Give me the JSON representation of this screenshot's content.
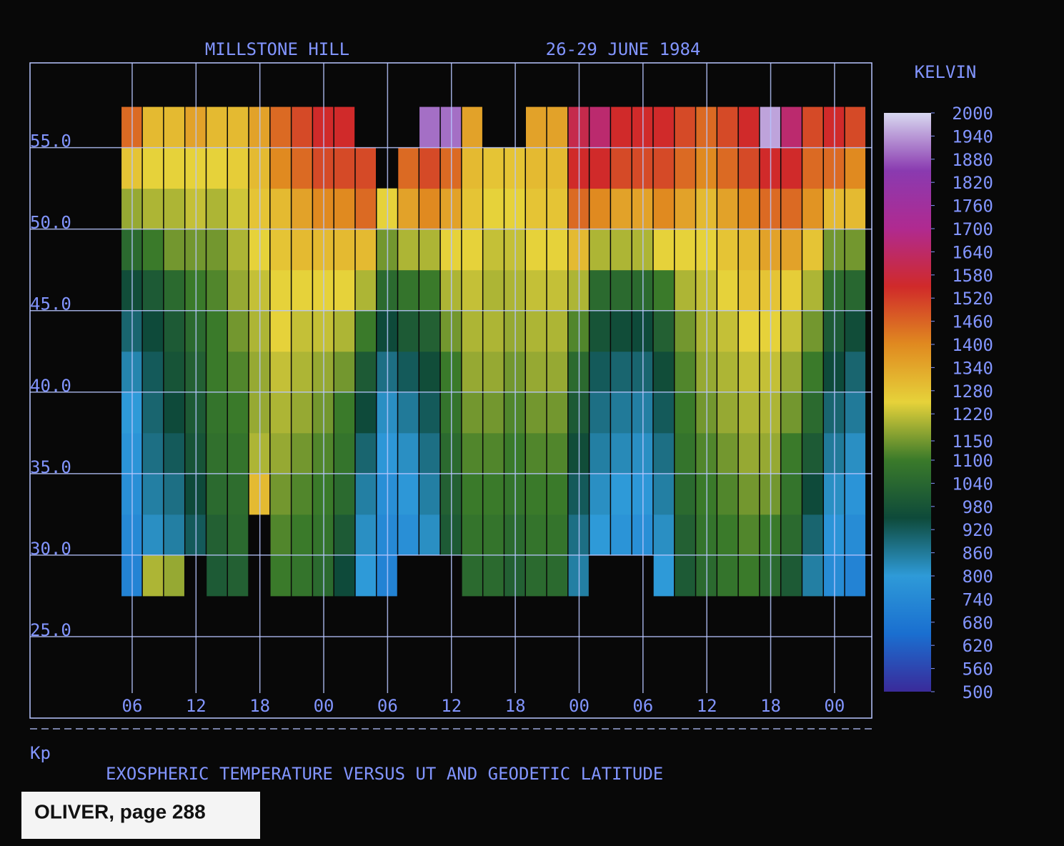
{
  "chart_data": {
    "type": "heatmap",
    "title": "MILLSTONE HILL",
    "subtitle": "26-29 JUNE 1984",
    "caption": "EXOSPHERIC TEMPERATURE VERSUS UT AND GEODETIC LATITUDE",
    "kp_label": "Kp",
    "stamp": "OLIVER, page 288",
    "colorbar_title": "KELVIN",
    "xlim": [
      -3.6,
      75.5
    ],
    "ylim": [
      20,
      60.2
    ],
    "xticks": [
      {
        "value": 6,
        "label": "06"
      },
      {
        "value": 12,
        "label": "12"
      },
      {
        "value": 18,
        "label": "18"
      },
      {
        "value": 24,
        "label": "00"
      },
      {
        "value": 30,
        "label": "06"
      },
      {
        "value": 36,
        "label": "12"
      },
      {
        "value": 42,
        "label": "18"
      },
      {
        "value": 48,
        "label": "00"
      },
      {
        "value": 54,
        "label": "06"
      },
      {
        "value": 60,
        "label": "12"
      },
      {
        "value": 66,
        "label": "18"
      },
      {
        "value": 72,
        "label": "00"
      }
    ],
    "yticks": [
      {
        "value": 55,
        "label": "55.0"
      },
      {
        "value": 50,
        "label": "50.0"
      },
      {
        "value": 45,
        "label": "45.0"
      },
      {
        "value": 40,
        "label": "40.0"
      },
      {
        "value": 35,
        "label": "35.0"
      },
      {
        "value": 30,
        "label": "30.0"
      },
      {
        "value": 25,
        "label": "25.0"
      }
    ],
    "grid": true,
    "clim": [
      500,
      2000
    ],
    "colors": [
      "#3a2a9a",
      "#1a6fd0",
      "#2e9ad8",
      "#0e4a3a",
      "#3a7a2a",
      "#e6d23a",
      "#e08a20",
      "#d02a2a",
      "#b02a90",
      "#8a3ab0",
      "#d8d8f0"
    ],
    "cticks": [
      2000,
      1940,
      1880,
      1820,
      1760,
      1700,
      1640,
      1580,
      1520,
      1460,
      1400,
      1340,
      1280,
      1220,
      1150,
      1100,
      1040,
      980,
      920,
      860,
      800,
      740,
      680,
      620,
      560,
      500
    ],
    "xbins": [
      5,
      7,
      9,
      11,
      13,
      15,
      17,
      19,
      21,
      23,
      25,
      27,
      29,
      31,
      33,
      35,
      37,
      39,
      41,
      43,
      45,
      47,
      49,
      51,
      53,
      55,
      57,
      59,
      61,
      63,
      65,
      67,
      69,
      71,
      73,
      75
    ],
    "ybins": [
      27.5,
      30,
      32.5,
      35,
      37.5,
      40,
      42.5,
      45,
      47.5,
      50,
      52.5,
      55,
      57.5
    ],
    "z": [
      [
        720,
        740,
        760,
        780,
        800,
        840,
        900,
        960,
        1050,
        1180,
        1280,
        1450
      ],
      [
        1200,
        820,
        850,
        880,
        900,
        920,
        950,
        1000,
        1100,
        1200,
        1250,
        1300
      ],
      [
        1180,
        850,
        880,
        920,
        950,
        980,
        1000,
        1050,
        1150,
        1200,
        1250,
        1300
      ],
      [
        null,
        920,
        950,
        980,
        1000,
        1020,
        1050,
        1100,
        1150,
        1220,
        1250,
        1350
      ],
      [
        1000,
        1020,
        1050,
        1070,
        1080,
        1100,
        1100,
        1120,
        1150,
        1200,
        1250,
        1300
      ],
      [
        1020,
        1050,
        1060,
        1080,
        1100,
        1120,
        1150,
        1180,
        1200,
        1230,
        1260,
        1300
      ],
      [
        null,
        null,
        1300,
        1200,
        1180,
        1180,
        1200,
        1220,
        1250,
        1280,
        1300,
        1350
      ],
      [
        1100,
        1120,
        1150,
        1180,
        1200,
        1220,
        1250,
        1250,
        1280,
        1300,
        1400,
        1450
      ],
      [
        1080,
        1100,
        1120,
        1150,
        1180,
        1200,
        1220,
        1250,
        1300,
        1350,
        1450,
        1500
      ],
      [
        1050,
        1080,
        1100,
        1120,
        1150,
        1180,
        1220,
        1250,
        1300,
        1400,
        1500,
        1550
      ],
      [
        950,
        1000,
        1050,
        1080,
        1100,
        1150,
        1200,
        1250,
        1300,
        1400,
        1500,
        1550
      ],
      [
        800,
        820,
        850,
        900,
        950,
        1000,
        1100,
        1200,
        1300,
        1450,
        1500,
        null
      ],
      [
        720,
        740,
        760,
        790,
        820,
        880,
        950,
        1050,
        1150,
        1250,
        null,
        null
      ],
      [
        null,
        760,
        790,
        820,
        860,
        920,
        1000,
        1080,
        1200,
        1350,
        1450,
        null
      ],
      [
        null,
        820,
        850,
        880,
        920,
        960,
        1020,
        1100,
        1200,
        1400,
        1500,
        1900
      ],
      [
        null,
        1000,
        1020,
        1050,
        1080,
        1100,
        1150,
        1200,
        1250,
        1350,
        1450,
        1900
      ],
      [
        1050,
        1080,
        1100,
        1120,
        1150,
        1180,
        1200,
        1220,
        1250,
        1280,
        1300,
        1350
      ],
      [
        1050,
        1080,
        1100,
        1120,
        1150,
        1180,
        1200,
        1200,
        1220,
        1250,
        1280,
        null
      ],
      [
        1020,
        1050,
        1080,
        1100,
        1120,
        1150,
        1180,
        1200,
        1220,
        1250,
        1280,
        null
      ],
      [
        1050,
        1080,
        1100,
        1120,
        1150,
        1180,
        1200,
        1220,
        1250,
        1280,
        1300,
        1350
      ],
      [
        1050,
        1080,
        1100,
        1120,
        1150,
        1180,
        1200,
        1220,
        1250,
        1280,
        1300,
        1350
      ],
      [
        850,
        880,
        920,
        960,
        1000,
        1050,
        1120,
        1200,
        1300,
        1450,
        1550,
        1600
      ],
      [
        null,
        800,
        820,
        850,
        880,
        920,
        980,
        1050,
        1200,
        1400,
        1550,
        1650
      ],
      [
        null,
        780,
        800,
        830,
        860,
        900,
        960,
        1050,
        1200,
        1350,
        1500,
        1550
      ],
      [
        null,
        760,
        790,
        820,
        850,
        900,
        950,
        1050,
        1200,
        1350,
        1500,
        1550
      ],
      [
        800,
        820,
        850,
        880,
        920,
        960,
        1020,
        1100,
        1250,
        1400,
        1500,
        1550
      ],
      [
        1000,
        1020,
        1050,
        1080,
        1100,
        1120,
        1150,
        1200,
        1250,
        1350,
        1450,
        1500
      ],
      [
        1050,
        1080,
        1100,
        1120,
        1150,
        1180,
        1200,
        1220,
        1250,
        1300,
        1400,
        1450
      ],
      [
        1080,
        1100,
        1120,
        1150,
        1180,
        1200,
        1220,
        1250,
        1280,
        1350,
        1450,
        1500
      ],
      [
        1100,
        1120,
        1150,
        1180,
        1200,
        1220,
        1250,
        1280,
        1300,
        1400,
        1500,
        1550
      ],
      [
        1050,
        1100,
        1150,
        1180,
        1200,
        1220,
        1250,
        1280,
        1350,
        1450,
        1550,
        1950
      ],
      [
        1000,
        1050,
        1080,
        1100,
        1150,
        1180,
        1220,
        1260,
        1350,
        1450,
        1550,
        1650
      ],
      [
        850,
        900,
        950,
        1000,
        1050,
        1100,
        1150,
        1200,
        1280,
        1380,
        1450,
        1500
      ],
      [
        750,
        780,
        820,
        860,
        900,
        950,
        1000,
        1060,
        1150,
        1300,
        1450,
        1550
      ],
      [
        720,
        750,
        780,
        820,
        860,
        900,
        960,
        1040,
        1150,
        1300,
        1400,
        1500
      ]
    ]
  }
}
